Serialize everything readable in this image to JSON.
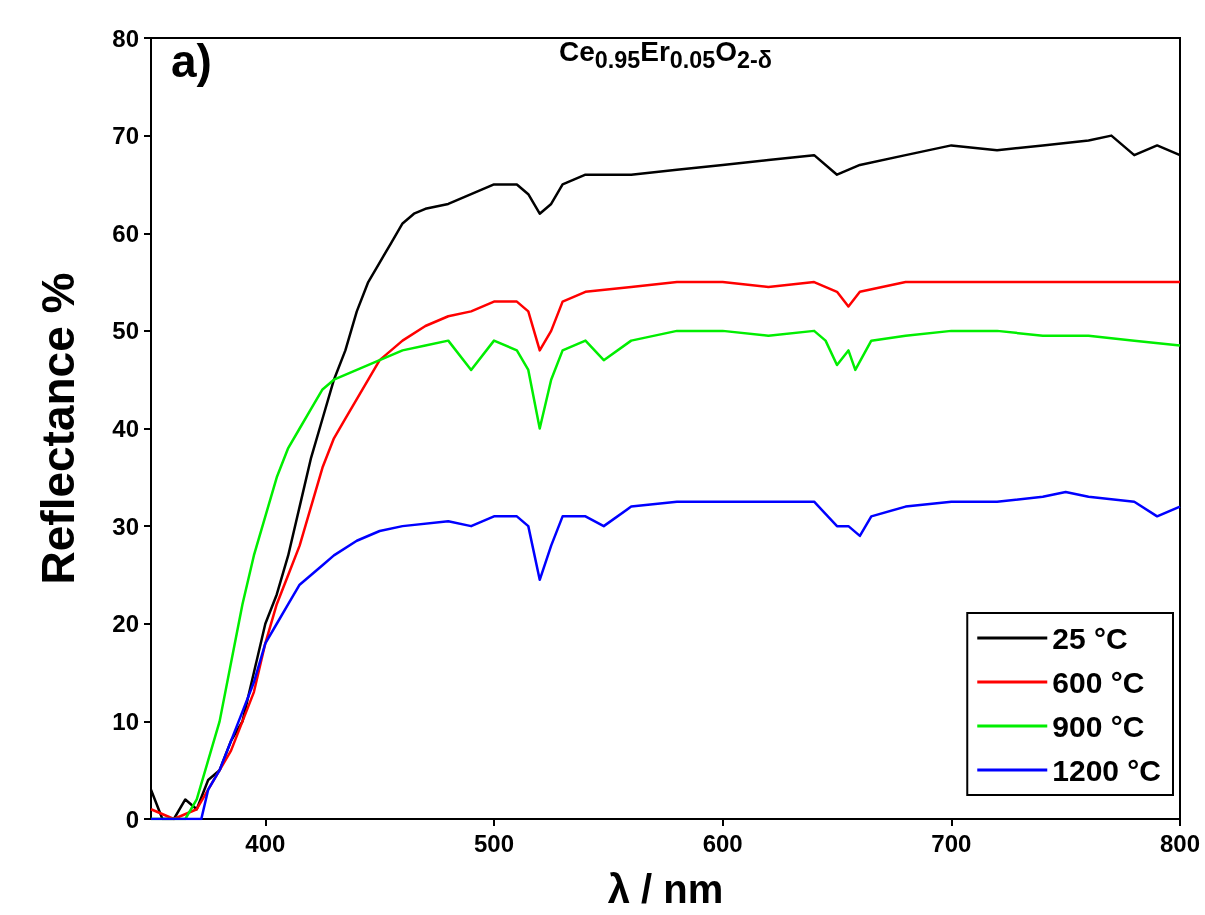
{
  "chart_data": {
    "type": "line",
    "title": "Ce$_{0.95}$Er$_{0.05}$O$_{2-δ}$",
    "xlabel": "λ / nm",
    "ylabel": "Reflectance %",
    "annotations": [
      "a)"
    ],
    "xlim": [
      350,
      800
    ],
    "xticks": [
      400,
      500,
      600,
      700,
      800
    ],
    "ylim": [
      0,
      80
    ],
    "yticks": [
      0,
      10,
      20,
      30,
      40,
      50,
      60,
      70,
      80
    ],
    "legend": "bottom right",
    "marker": "none",
    "line_style": "solid",
    "series": [
      {
        "name": "25 °C",
        "color": "#000000",
        "x": [
          350,
          355,
          360,
          365,
          370,
          375,
          380,
          385,
          390,
          395,
          400,
          405,
          410,
          415,
          420,
          425,
          430,
          435,
          440,
          445,
          450,
          455,
          460,
          465,
          470,
          480,
          490,
          500,
          510,
          515,
          520,
          525,
          530,
          540,
          560,
          580,
          600,
          620,
          640,
          650,
          660,
          680,
          700,
          720,
          740,
          760,
          770,
          780,
          790,
          800
        ],
        "values": [
          3,
          0,
          0,
          2,
          1,
          4,
          5,
          8,
          10,
          15,
          20,
          23,
          27,
          32,
          37,
          41,
          45,
          48,
          52,
          55,
          57,
          59,
          61,
          62,
          62.5,
          63,
          64,
          65,
          65,
          64,
          62,
          63,
          65,
          66,
          66,
          66.5,
          67,
          67.5,
          68,
          66,
          67,
          68,
          69,
          68.5,
          69,
          69.5,
          70,
          68,
          69,
          68
        ]
      },
      {
        "name": "600 °C",
        "color": "#ff0000",
        "x": [
          350,
          360,
          370,
          375,
          380,
          385,
          390,
          395,
          400,
          405,
          410,
          415,
          420,
          425,
          430,
          435,
          440,
          445,
          450,
          460,
          470,
          480,
          490,
          500,
          510,
          515,
          520,
          525,
          530,
          540,
          560,
          580,
          600,
          620,
          640,
          650,
          655,
          660,
          680,
          700,
          740,
          760,
          780,
          800
        ],
        "values": [
          1,
          0,
          1,
          3,
          5,
          7,
          10,
          13,
          18,
          22,
          25,
          28,
          32,
          36,
          39,
          41,
          43,
          45,
          47,
          49,
          50.5,
          51.5,
          52,
          53,
          53,
          52,
          48,
          50,
          53,
          54,
          54.5,
          55,
          55,
          54.5,
          55,
          54,
          52.5,
          54,
          55,
          55,
          55,
          55,
          55,
          55
        ]
      },
      {
        "name": "900 °C",
        "color": "#00ee00",
        "x": [
          350,
          360,
          365,
          370,
          375,
          380,
          385,
          390,
          395,
          400,
          405,
          410,
          415,
          420,
          425,
          430,
          440,
          450,
          460,
          470,
          480,
          490,
          500,
          510,
          515,
          520,
          525,
          530,
          540,
          548,
          560,
          580,
          600,
          620,
          640,
          645,
          650,
          655,
          658,
          665,
          680,
          700,
          720,
          740,
          760,
          780,
          800
        ],
        "values": [
          0,
          0,
          0,
          2,
          6,
          10,
          16,
          22,
          27,
          31,
          35,
          38,
          40,
          42,
          44,
          45,
          46,
          47,
          48,
          48.5,
          49,
          46,
          49,
          48,
          46,
          40,
          45,
          48,
          49,
          47,
          49,
          50,
          50,
          49.5,
          50,
          49,
          46.5,
          48,
          46,
          49,
          49.5,
          50,
          50,
          49.5,
          49.5,
          49,
          48.5
        ]
      },
      {
        "name": "1200 °C",
        "color": "#0000ff",
        "x": [
          350,
          360,
          370,
          372,
          375,
          380,
          385,
          390,
          395,
          400,
          405,
          410,
          415,
          420,
          425,
          430,
          440,
          450,
          460,
          480,
          490,
          500,
          510,
          515,
          520,
          525,
          530,
          540,
          548,
          560,
          580,
          600,
          620,
          640,
          650,
          655,
          660,
          665,
          680,
          700,
          720,
          740,
          750,
          760,
          780,
          790,
          800
        ],
        "values": [
          0,
          0,
          0,
          0,
          3,
          5,
          8,
          11,
          14,
          18,
          20,
          22,
          24,
          25,
          26,
          27,
          28.5,
          29.5,
          30,
          30.5,
          30,
          31,
          31,
          30,
          24.5,
          28,
          31,
          31,
          30,
          32,
          32.5,
          32.5,
          32.5,
          32.5,
          30,
          30,
          29,
          31,
          32,
          32.5,
          32.5,
          33,
          33.5,
          33,
          32.5,
          31,
          32
        ]
      }
    ]
  }
}
